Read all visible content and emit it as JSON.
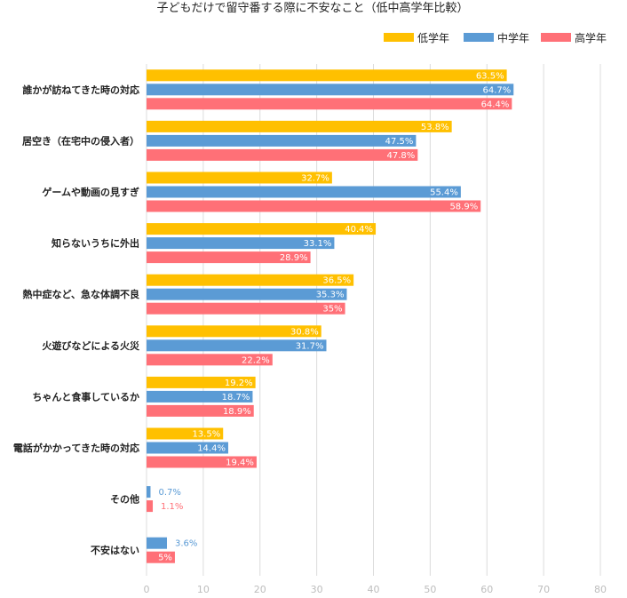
{
  "chart_data": {
    "type": "bar",
    "orientation": "horizontal",
    "title": "子どもだけで留守番する際に不安なこと（低中高学年比較）",
    "categories": [
      "誰かが訪ねてきた時の対応",
      "居空き（在宅中の侵入者）",
      "ゲームや動画の見すぎ",
      "知らないうちに外出",
      "熱中症など、急な体調不良",
      "火遊びなどによる火災",
      "ちゃんと食事しているか",
      "電話がかかってきた時の対応",
      "その他",
      "不安はない"
    ],
    "series": [
      {
        "name": "低学年",
        "color": "#ffc000",
        "values": [
          63.5,
          53.8,
          32.7,
          40.4,
          36.5,
          30.8,
          19.2,
          13.5,
          null,
          null
        ],
        "labels": [
          "63.5%",
          "53.8%",
          "32.7%",
          "40.4%",
          "36.5%",
          "30.8%",
          "19.2%",
          "13.5%",
          null,
          null
        ]
      },
      {
        "name": "中学年",
        "color": "#5b9bd5",
        "values": [
          64.7,
          47.5,
          55.4,
          33.1,
          35.3,
          31.7,
          18.7,
          14.4,
          0.7,
          3.6
        ],
        "labels": [
          "64.7%",
          "47.5%",
          "55.4%",
          "33.1%",
          "35.3%",
          "31.7%",
          "18.7%",
          "14.4%",
          "0.7%",
          "3.6%"
        ]
      },
      {
        "name": "高学年",
        "color": "#ff7077",
        "values": [
          64.4,
          47.8,
          58.9,
          28.9,
          35,
          22.2,
          18.9,
          19.4,
          1.1,
          5
        ],
        "labels": [
          "64.4%",
          "47.8%",
          "58.9%",
          "28.9%",
          "35%",
          "22.2%",
          "18.9%",
          "19.4%",
          "1.1%",
          "5%"
        ]
      }
    ],
    "xlim": [
      0,
      80
    ],
    "ticks": [
      0,
      10,
      20,
      30,
      40,
      50,
      60,
      70,
      80
    ],
    "grid": true,
    "legend_position": "top-right"
  }
}
